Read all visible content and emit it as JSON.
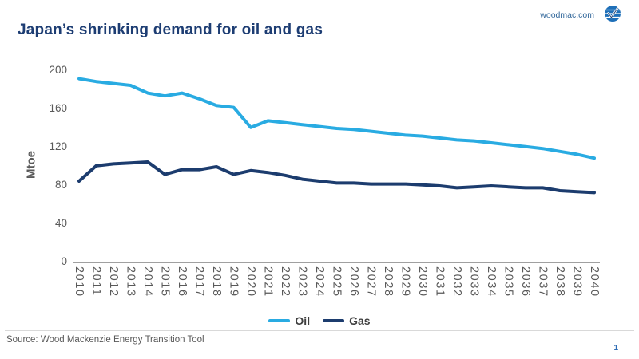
{
  "header": {
    "title": "Japan’s shrinking demand for oil and gas",
    "site": "woodmac.com"
  },
  "chart_data": {
    "type": "line",
    "title": "Japan’s shrinking demand for oil and gas",
    "xlabel": "",
    "ylabel": "Mtoe",
    "ylim": [
      0,
      200
    ],
    "yticks": [
      0,
      40,
      80,
      120,
      160,
      200
    ],
    "grid": false,
    "legend_position": "bottom",
    "categories": [
      2010,
      2011,
      2012,
      2013,
      2014,
      2015,
      2016,
      2017,
      2018,
      2019,
      2020,
      2021,
      2022,
      2023,
      2024,
      2025,
      2026,
      2027,
      2028,
      2029,
      2030,
      2031,
      2032,
      2033,
      2034,
      2035,
      2036,
      2037,
      2038,
      2039,
      2040
    ],
    "series": [
      {
        "name": "Oil",
        "color": "#29abe2",
        "values": [
          192,
          189,
          187,
          185,
          177,
          174,
          177,
          171,
          164,
          162,
          141,
          148,
          146,
          144,
          142,
          140,
          139,
          137,
          135,
          133,
          132,
          130,
          128,
          127,
          125,
          123,
          121,
          119,
          116,
          113,
          109
        ]
      },
      {
        "name": "Gas",
        "color": "#1c3c6e",
        "values": [
          85,
          101,
          103,
          104,
          105,
          92,
          97,
          97,
          100,
          92,
          96,
          94,
          91,
          87,
          85,
          83,
          83,
          82,
          82,
          82,
          81,
          80,
          78,
          79,
          80,
          79,
          78,
          78,
          75,
          74,
          73
        ]
      }
    ]
  },
  "footer": {
    "source": "Source: Wood Mackenzie Energy Transition Tool",
    "page": "1"
  },
  "colors": {
    "oil_line": "#29abe2",
    "gas_line": "#1c3c6e",
    "title_navy": "#1d3d73",
    "axis_text": "#595959",
    "link_blue": "#33689b"
  }
}
